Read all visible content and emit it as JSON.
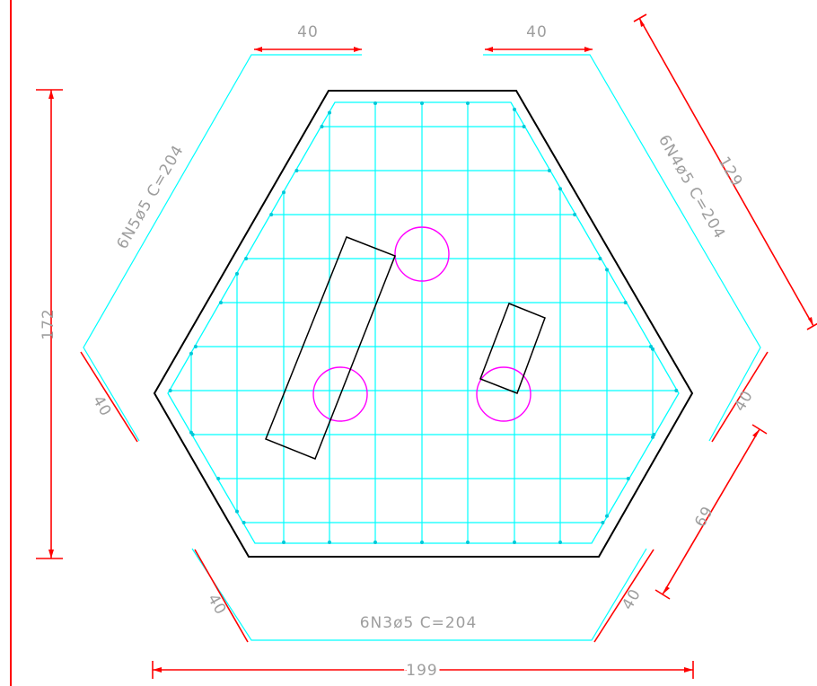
{
  "colors": {
    "background": "#ffffff",
    "dimension_line": "#ff0000",
    "rebar": "#00ffff",
    "outline": "#000000",
    "hole": "#ff00ff",
    "text": "#9e9e9e"
  },
  "labels": {
    "dim_top_left": "40",
    "dim_top_right": "40",
    "dim_left_height": "172",
    "dim_diagonal_top_right": "129",
    "dim_left_40": "40",
    "dim_right_40": "40",
    "dim_bottom_left_40": "40",
    "dim_bottom_right_40": "40",
    "dim_69": "69",
    "dim_bottom_width": "199",
    "bar_n5": "6N5ø5  C=204",
    "bar_n4": "6N4ø5  C=204",
    "bar_n3": "6N3ø5  C=204"
  }
}
